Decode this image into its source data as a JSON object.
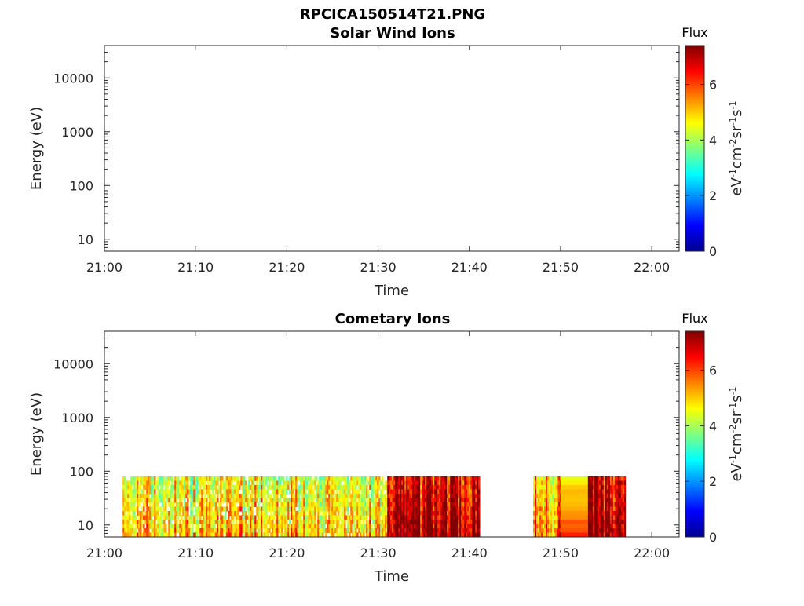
{
  "figure_title": "RPCICA150514T21.PNG",
  "colors": {
    "colormap": [
      "#00008f",
      "#0000ff",
      "#0080ff",
      "#00ffff",
      "#80ff80",
      "#ffff00",
      "#ff8000",
      "#ff0000",
      "#800000"
    ]
  },
  "chart_data": [
    {
      "type": "heatmap",
      "title": "Solar Wind Ions",
      "xlabel": "Time",
      "ylabel": "Energy (eV)",
      "y_scale": "log",
      "x_ticks": [
        "21:00",
        "21:10",
        "21:20",
        "21:30",
        "21:40",
        "21:50",
        "22:00"
      ],
      "y_ticks": [
        "10",
        "100",
        "1000",
        "10000"
      ],
      "xlim": [
        "21:00",
        "22:03"
      ],
      "ylim": [
        6,
        40000
      ],
      "colorbar": {
        "title": "Flux",
        "unit_base": [
          "eV",
          "cm",
          "sr",
          "s"
        ],
        "unit_exp": [
          "-1",
          "-2",
          "-1",
          "-1"
        ],
        "ticks": [
          "0",
          "2",
          "4",
          "6"
        ],
        "range": [
          0,
          7.4
        ]
      },
      "blocks": []
    },
    {
      "type": "heatmap",
      "title": "Cometary Ions",
      "xlabel": "Time",
      "ylabel": "Energy (eV)",
      "y_scale": "log",
      "x_ticks": [
        "21:00",
        "21:10",
        "21:20",
        "21:30",
        "21:40",
        "21:50",
        "22:00"
      ],
      "y_ticks": [
        "10",
        "100",
        "1000",
        "10000"
      ],
      "xlim": [
        "21:00",
        "22:03"
      ],
      "ylim": [
        6,
        40000
      ],
      "colorbar": {
        "title": "Flux",
        "unit_base": [
          "eV",
          "cm",
          "sr",
          "s"
        ],
        "unit_exp": [
          "-1",
          "-2",
          "-1",
          "-1"
        ],
        "ticks": [
          "0",
          "2",
          "4",
          "6"
        ],
        "range": [
          0,
          7.4
        ]
      },
      "energy_range": [
        6,
        80
      ],
      "blocks": [
        {
          "start": "21:02",
          "end": "21:31",
          "flux": 4.4,
          "pattern": "striped"
        },
        {
          "start": "21:31",
          "end": "21:41",
          "flux": 6.3,
          "pattern": "striped"
        },
        {
          "start": "21:47",
          "end": "21:50",
          "flux": 5.0,
          "pattern": "striped"
        },
        {
          "start": "21:50",
          "end": "21:53",
          "flux": 5.4,
          "pattern": "banded"
        },
        {
          "start": "21:53",
          "end": "21:57",
          "flux": 6.6,
          "pattern": "striped"
        }
      ]
    }
  ]
}
